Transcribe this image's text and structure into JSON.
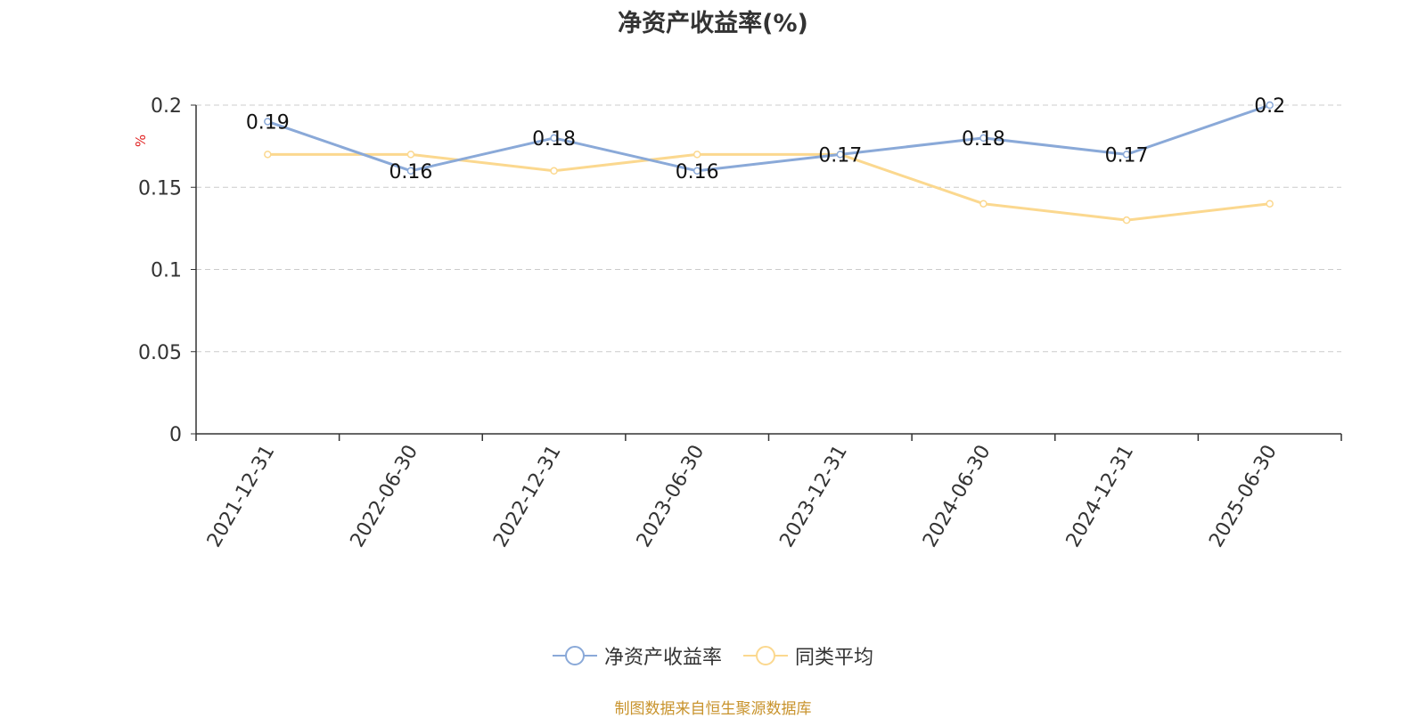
{
  "chart_data": {
    "type": "line",
    "title": "净资产收益率(%)",
    "ylabel": "%",
    "xlabel": "",
    "categories": [
      "2021-12-31",
      "2022-06-30",
      "2022-12-31",
      "2023-06-30",
      "2023-12-31",
      "2024-06-30",
      "2024-12-31",
      "2025-06-30"
    ],
    "ylim": [
      0,
      0.2
    ],
    "yticks": [
      "0",
      "0.05",
      "0.1",
      "0.15",
      "0.2"
    ],
    "series": [
      {
        "name": "净资产收益率",
        "values": [
          0.19,
          0.16,
          0.18,
          0.16,
          0.17,
          0.18,
          0.17,
          0.2
        ],
        "data_labels": [
          "0.19",
          "0.16",
          "0.18",
          "0.16",
          "0.17",
          "0.18",
          "0.17",
          "0.2"
        ],
        "color": "#8aa9d8"
      },
      {
        "name": "同类平均",
        "values": [
          0.17,
          0.17,
          0.16,
          0.17,
          0.17,
          0.14,
          0.13,
          0.14
        ],
        "color": "#fbd88f"
      }
    ],
    "grid": true,
    "legend_position": "bottom"
  },
  "source_note": "制图数据来自恒生聚源数据库",
  "colors": {
    "axis": "#333333",
    "grid": "#cccccc",
    "ylabel": "#e02020",
    "source": "#c8932c"
  }
}
